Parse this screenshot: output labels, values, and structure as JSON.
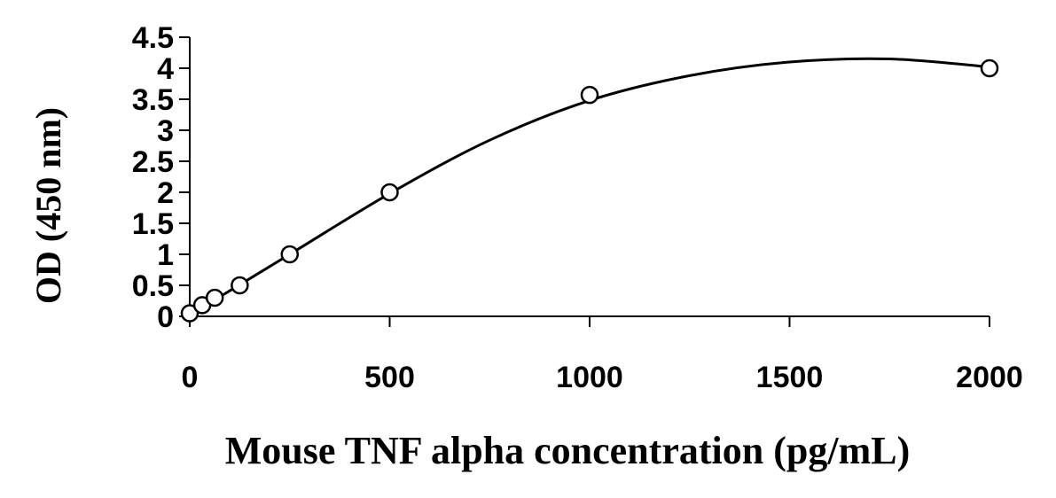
{
  "chart_data": {
    "type": "scatter",
    "title": "",
    "xlabel": "Mouse TNF alpha concentration (pg/mL)",
    "ylabel": "OD (450 nm)",
    "xlim": [
      0,
      2000
    ],
    "ylim": [
      0,
      4.5
    ],
    "x_ticks": [
      0,
      500,
      1000,
      1500,
      2000
    ],
    "x_tick_labels": [
      "0",
      "500",
      "1000",
      "1500",
      "2000"
    ],
    "y_ticks": [
      0,
      0.5,
      1,
      1.5,
      2,
      2.5,
      3,
      3.5,
      4,
      4.5
    ],
    "y_tick_labels": [
      "0",
      "0.5",
      "1",
      "1.5",
      "2",
      "2.5",
      "3",
      "3.5",
      "4",
      "4.5"
    ],
    "grid": false,
    "legend": "none",
    "series": [
      {
        "marker": "open-circle",
        "x": [
          0,
          31.25,
          62.5,
          125,
          250,
          500,
          1000,
          2000
        ],
        "y": [
          0.05,
          0.18,
          0.3,
          0.5,
          1.0,
          2.0,
          3.57,
          4.0
        ]
      }
    ],
    "fit_curve": {
      "type": "polynomial",
      "x": [
        0,
        250,
        500,
        750,
        1000,
        1250,
        1500,
        1750,
        2000
      ],
      "y": [
        0.02,
        1.0,
        1.98,
        2.84,
        3.48,
        3.88,
        4.1,
        4.15,
        4.02
      ]
    },
    "colors": {
      "line": "#000000",
      "marker_fill": "#ffffff"
    }
  }
}
